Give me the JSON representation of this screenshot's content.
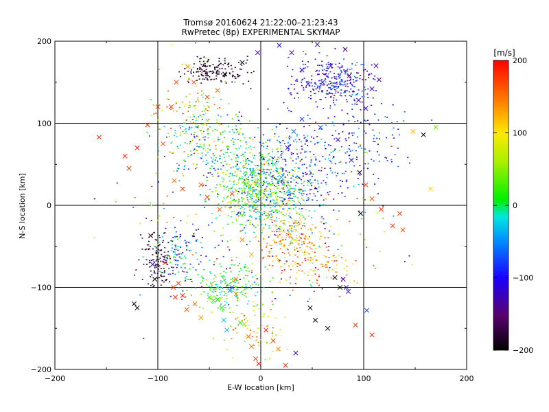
{
  "chart_data": {
    "type": "scatter",
    "title": "Tromsø 20160624 21:22:00–21:23:43",
    "subtitle": "RwPretec (8p) EXPERIMENTAL SKYMAP",
    "xlabel": "E-W location [km]",
    "ylabel": "N-S location [km]",
    "xlim": [
      -200,
      200
    ],
    "ylim": [
      -200,
      200
    ],
    "x_ticks": [
      -200,
      -100,
      0,
      100,
      200
    ],
    "y_ticks": [
      -200,
      -100,
      0,
      100,
      200
    ],
    "x_tick_labels": [
      "−200",
      "−100",
      "0",
      "100",
      "200"
    ],
    "y_tick_labels": [
      "−200",
      "−100",
      "0",
      "100",
      "200"
    ],
    "grid": true,
    "colorbar": {
      "label": "[m/s]",
      "range": [
        -200,
        200
      ],
      "ticks": [
        200,
        100,
        0,
        -100,
        -200
      ],
      "tick_labels": [
        "200",
        "100",
        "0",
        "−100",
        "−200"
      ],
      "colormap": "rainbow (black → purple → blue → cyan → green → yellow → orange → red)"
    },
    "series": [
      {
        "name": "",
        "marker": "x",
        "points": [
          [
            -157,
            83,
            180
          ],
          [
            -132,
            60,
            180
          ],
          [
            -123,
            -120,
            -190
          ],
          [
            -120,
            -125,
            -195
          ],
          [
            -107,
            -37,
            -195
          ],
          [
            -105,
            -72,
            -110
          ],
          [
            -103,
            -90,
            -200
          ],
          [
            -93,
            -70,
            175
          ],
          [
            -85,
            -100,
            175
          ],
          [
            -83,
            -112,
            180
          ],
          [
            -80,
            -95,
            175
          ],
          [
            -76,
            -110,
            180
          ],
          [
            -72,
            -127,
            160
          ],
          [
            -64,
            -120,
            150
          ],
          [
            -58,
            -137,
            130
          ],
          [
            -50,
            -112,
            30
          ],
          [
            -46,
            -116,
            20
          ],
          [
            -42,
            -115,
            10
          ],
          [
            -38,
            -125,
            15
          ],
          [
            -36,
            -140,
            -20
          ],
          [
            -33,
            -152,
            -30
          ],
          [
            -30,
            -104,
            -50
          ],
          [
            -28,
            -100,
            -70
          ],
          [
            -24,
            -108,
            140
          ],
          [
            -20,
            -143,
            25
          ],
          [
            -16,
            -145,
            60
          ],
          [
            -12,
            -160,
            150
          ],
          [
            -9,
            -172,
            150
          ],
          [
            -5,
            -187,
            170
          ],
          [
            -2,
            -193,
            190
          ],
          [
            5,
            -152,
            180
          ],
          [
            12,
            -165,
            170
          ],
          [
            17,
            -175,
            140
          ],
          [
            24,
            -195,
            180
          ],
          [
            34,
            -180,
            -120
          ],
          [
            48,
            -125,
            -200
          ],
          [
            53,
            -140,
            -200
          ],
          [
            65,
            -150,
            -200
          ],
          [
            72,
            -88,
            -190
          ],
          [
            77,
            -100,
            -200
          ],
          [
            80,
            -90,
            -120
          ],
          [
            83,
            -100,
            -110
          ],
          [
            85,
            -105,
            -100
          ],
          [
            92,
            -146,
            180
          ],
          [
            103,
            -128,
            -70
          ],
          [
            108,
            -158,
            180
          ],
          [
            86,
            158,
            -140
          ],
          [
            95,
            128,
            -120
          ],
          [
            102,
            118,
            -110
          ],
          [
            108,
            142,
            -130
          ],
          [
            112,
            170,
            -130
          ],
          [
            115,
            153,
            -140
          ],
          [
            82,
            190,
            -150
          ],
          [
            55,
            196,
            -120
          ],
          [
            68,
            170,
            -115
          ],
          [
            60,
            150,
            -110
          ],
          [
            46,
            148,
            -100
          ],
          [
            40,
            165,
            -110
          ],
          [
            30,
            186,
            -130
          ],
          [
            18,
            195,
            -100
          ],
          [
            -3,
            186,
            -120
          ],
          [
            -18,
            174,
            -190
          ],
          [
            -35,
            160,
            -200
          ],
          [
            -42,
            140,
            150
          ],
          [
            -52,
            132,
            170
          ],
          [
            -65,
            150,
            165
          ],
          [
            -71,
            169,
            140
          ],
          [
            -82,
            150,
            170
          ],
          [
            -87,
            120,
            175
          ],
          [
            -100,
            120,
            170
          ],
          [
            -110,
            98,
            185
          ],
          [
            -120,
            70,
            190
          ],
          [
            -128,
            45,
            175
          ],
          [
            -95,
            75,
            160
          ],
          [
            -84,
            30,
            150
          ],
          [
            -76,
            20,
            175
          ],
          [
            -58,
            25,
            165
          ],
          [
            -52,
            10,
            170
          ],
          [
            -40,
            -5,
            150
          ],
          [
            -28,
            14,
            170
          ],
          [
            -15,
            26,
            40
          ],
          [
            -8,
            40,
            30
          ],
          [
            13,
            50,
            -20
          ],
          [
            20,
            34,
            -40
          ],
          [
            26,
            70,
            -110
          ],
          [
            32,
            90,
            -60
          ],
          [
            40,
            105,
            -80
          ],
          [
            58,
            95,
            -70
          ],
          [
            75,
            80,
            -120
          ],
          [
            88,
            55,
            -90
          ],
          [
            96,
            40,
            -195
          ],
          [
            102,
            25,
            175
          ],
          [
            108,
            8,
            160
          ],
          [
            128,
            -25,
            180
          ],
          [
            138,
            -30,
            170
          ],
          [
            148,
            90,
            120
          ],
          [
            158,
            86,
            -200
          ],
          [
            170,
            95,
            40
          ],
          [
            165,
            20,
            110
          ],
          [
            135,
            -10,
            170
          ],
          [
            117,
            -5,
            175
          ],
          [
            97,
            -10,
            -200
          ],
          [
            -18,
            -42,
            140
          ],
          [
            -9,
            -60,
            120
          ],
          [
            -24,
            -90,
            150
          ]
        ]
      },
      {
        "name": "",
        "marker": "dot",
        "clusters": [
          {
            "center": [
              0,
              20
            ],
            "spread": [
              40,
              45
            ],
            "count": 720,
            "velocity": [
              -60,
              90
            ]
          },
          {
            "center": [
              -50,
              80
            ],
            "spread": [
              40,
              40
            ],
            "count": 200,
            "velocity": [
              -90,
              60
            ]
          },
          {
            "center": [
              -45,
              165
            ],
            "spread": [
              28,
              14
            ],
            "count": 160,
            "velocity": [
              -200,
              -170
            ]
          },
          {
            "center": [
              70,
              150
            ],
            "spread": [
              35,
              28
            ],
            "count": 300,
            "velocity": [
              -150,
              -50
            ]
          },
          {
            "center": [
              40,
              50
            ],
            "spread": [
              45,
              50
            ],
            "count": 280,
            "velocity": [
              -140,
              -20
            ]
          },
          {
            "center": [
              30,
              -40
            ],
            "spread": [
              30,
              30
            ],
            "count": 200,
            "velocity": [
              70,
              180
            ]
          },
          {
            "center": [
              -30,
              -100
            ],
            "spread": [
              30,
              25
            ],
            "count": 170,
            "velocity": [
              -30,
              60
            ]
          },
          {
            "center": [
              -100,
              -65
            ],
            "spread": [
              14,
              35
            ],
            "count": 110,
            "velocity": [
              -200,
              -160
            ]
          },
          {
            "center": [
              -80,
              -60
            ],
            "spread": [
              18,
              35
            ],
            "count": 120,
            "velocity": [
              -140,
              30
            ]
          },
          {
            "center": [
              -70,
              110
            ],
            "spread": [
              30,
              60
            ],
            "count": 120,
            "velocity": [
              30,
              200
            ]
          },
          {
            "center": [
              0,
              -10
            ],
            "spread": [
              120,
              110
            ],
            "count": 330,
            "velocity": [
              -200,
              200
            ]
          },
          {
            "center": [
              -5,
              -150
            ],
            "spread": [
              25,
              30
            ],
            "count": 70,
            "velocity": [
              20,
              180
            ]
          },
          {
            "center": [
              100,
              80
            ],
            "spread": [
              40,
              50
            ],
            "count": 110,
            "velocity": [
              -130,
              -40
            ]
          },
          {
            "center": [
              50,
              -70
            ],
            "spread": [
              40,
              25
            ],
            "count": 110,
            "velocity": [
              80,
              200
            ]
          }
        ]
      }
    ]
  }
}
